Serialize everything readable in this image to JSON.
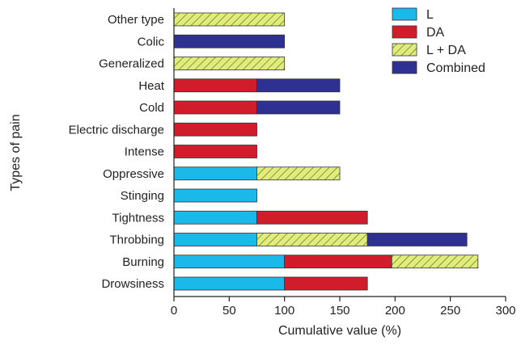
{
  "chart_data": {
    "type": "bar",
    "orientation": "horizontal",
    "stacked": true,
    "xlabel": "Cumulative value (%)",
    "ylabel": "Types of pain",
    "xlim": [
      0,
      300
    ],
    "xticks": [
      0,
      50,
      100,
      150,
      200,
      250,
      300
    ],
    "grid": false,
    "legend_position": "top-right",
    "categories": [
      "Other type",
      "Colic",
      "Generalized",
      "Heat",
      "Cold",
      "Electric discharge",
      "Intense",
      "Oppressive",
      "Stinging",
      "Tightness",
      "Throbbing",
      "Burning",
      "Drowsiness"
    ],
    "series": [
      {
        "name": "L",
        "color": "#1bb8ea",
        "pattern": "solid",
        "values": [
          0,
          0,
          0,
          0,
          0,
          0,
          0,
          75,
          75,
          75,
          75,
          100,
          100
        ]
      },
      {
        "name": "DA",
        "color": "#d01c2b",
        "pattern": "solid",
        "values": [
          0,
          0,
          0,
          75,
          75,
          75,
          75,
          0,
          0,
          100,
          0,
          97,
          75
        ]
      },
      {
        "name": "L + DA",
        "color": "#e1ec7c",
        "pattern": "hatch",
        "values": [
          100,
          0,
          100,
          0,
          0,
          0,
          0,
          75,
          0,
          0,
          100,
          78,
          0
        ]
      },
      {
        "name": "Combined",
        "color": "#2e3192",
        "pattern": "solid",
        "values": [
          0,
          100,
          0,
          75,
          75,
          0,
          0,
          0,
          0,
          0,
          90,
          0,
          0
        ]
      }
    ]
  }
}
